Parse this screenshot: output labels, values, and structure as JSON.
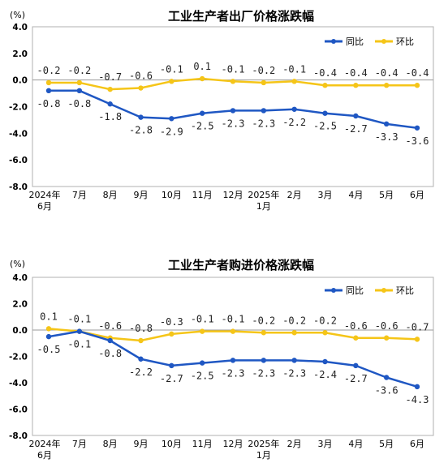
{
  "chart_data": [
    {
      "type": "line",
      "title": "工业生产者出厂价格涨跌幅",
      "unit": "(%)",
      "categories": [
        "2024年\n6月",
        "7月",
        "8月",
        "9月",
        "10月",
        "11月",
        "12月",
        "2025年\n1月",
        "2月",
        "3月",
        "4月",
        "5月",
        "6月"
      ],
      "ylim": [
        -8.0,
        4.0
      ],
      "yticks": [
        "4.0",
        "2.0",
        "0.0",
        "-2.0",
        "-4.0",
        "-6.0",
        "-8.0"
      ],
      "legend_position": "top-right",
      "series": [
        {
          "name": "同比",
          "color": "#1f57c3",
          "values": [
            -0.8,
            -0.8,
            -1.8,
            -2.8,
            -2.9,
            -2.5,
            -2.3,
            -2.3,
            -2.2,
            -2.5,
            -2.7,
            -3.3,
            -3.6
          ],
          "labels": [
            "-0.8",
            "-0.8",
            "-1.8",
            "-2.8",
            "-2.9",
            "-2.5",
            "-2.3",
            "-2.3",
            "-2.2",
            "-2.5",
            "-2.7",
            "-3.3",
            "-3.6"
          ]
        },
        {
          "name": "环比",
          "color": "#f5c518",
          "values": [
            -0.2,
            -0.2,
            -0.7,
            -0.6,
            -0.1,
            0.1,
            -0.1,
            -0.2,
            -0.1,
            -0.4,
            -0.4,
            -0.4,
            -0.4
          ],
          "labels": [
            "-0.2",
            "-0.2",
            "-0.7",
            "-0.6",
            "-0.1",
            "0.1",
            "-0.1",
            "-0.2",
            "-0.1",
            "-0.4",
            "-0.4",
            "-0.4",
            "-0.4"
          ]
        }
      ]
    },
    {
      "type": "line",
      "title": "工业生产者购进价格涨跌幅",
      "unit": "(%)",
      "categories": [
        "2024年\n6月",
        "7月",
        "8月",
        "9月",
        "10月",
        "11月",
        "12月",
        "2025年\n1月",
        "2月",
        "3月",
        "4月",
        "5月",
        "6月"
      ],
      "ylim": [
        -8.0,
        4.0
      ],
      "yticks": [
        "4.0",
        "2.0",
        "0.0",
        "-2.0",
        "-4.0",
        "-6.0",
        "-8.0"
      ],
      "legend_position": "top-right",
      "series": [
        {
          "name": "同比",
          "color": "#1f57c3",
          "values": [
            -0.5,
            -0.1,
            -0.8,
            -2.2,
            -2.7,
            -2.5,
            -2.3,
            -2.3,
            -2.3,
            -2.4,
            -2.7,
            -3.6,
            -4.3
          ],
          "labels": [
            "-0.5",
            "-0.1",
            "-0.8",
            "-2.2",
            "-2.7",
            "-2.5",
            "-2.3",
            "-2.3",
            "-2.3",
            "-2.4",
            "-2.7",
            "-3.6",
            "-4.3"
          ]
        },
        {
          "name": "环比",
          "color": "#f5c518",
          "values": [
            0.1,
            -0.1,
            -0.6,
            -0.8,
            -0.3,
            -0.1,
            -0.1,
            -0.2,
            -0.2,
            -0.2,
            -0.6,
            -0.6,
            -0.7
          ],
          "labels": [
            "0.1",
            "-0.1",
            "-0.6",
            "-0.8",
            "-0.3",
            "-0.1",
            "-0.1",
            "-0.2",
            "-0.2",
            "-0.2",
            "-0.6",
            "-0.6",
            "-0.7"
          ]
        }
      ]
    }
  ]
}
